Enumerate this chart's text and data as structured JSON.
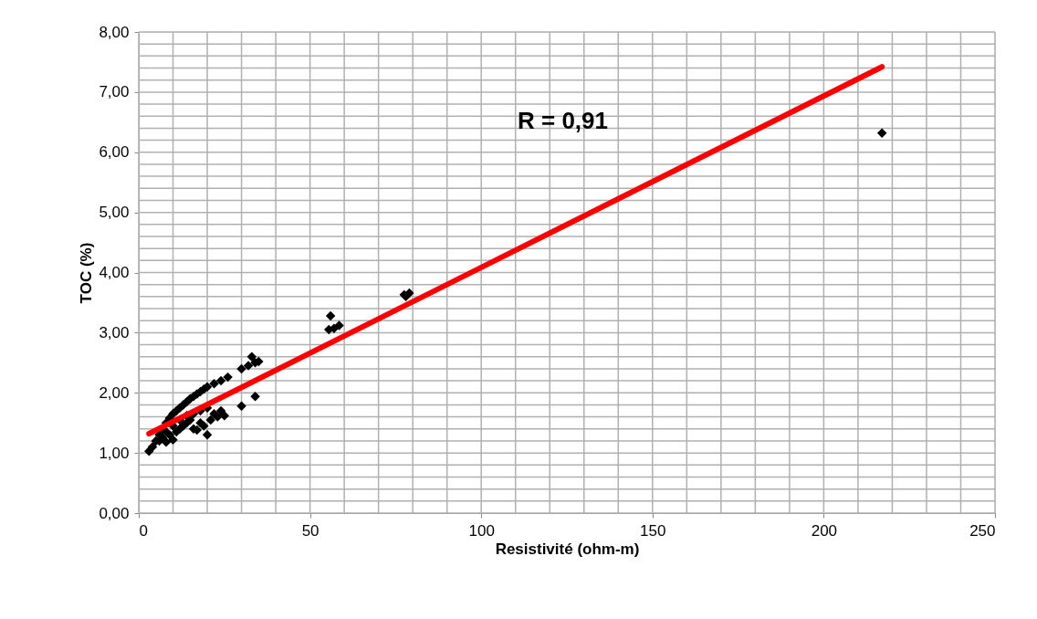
{
  "chart_data": {
    "type": "scatter",
    "xlabel": "Resistivité (ohm-m)",
    "ylabel": "TOC (%)",
    "annotations": [
      "R = 0,91"
    ],
    "xlim": [
      0,
      250
    ],
    "ylim": [
      0,
      8
    ],
    "xticks": [
      0,
      {
        "value": 10,
        "label": null
      },
      {
        "value": 20,
        "label": null
      },
      {
        "value": 30,
        "label": null
      },
      {
        "value": 40,
        "label": null
      },
      50,
      {
        "value": 60,
        "label": null
      },
      {
        "value": 70,
        "label": null
      },
      {
        "value": 80,
        "label": null
      },
      {
        "value": 90,
        "label": null
      },
      100,
      {
        "value": 110,
        "label": null
      },
      {
        "value": 120,
        "label": null
      },
      {
        "value": 130,
        "label": null
      },
      {
        "value": 140,
        "label": null
      },
      150,
      {
        "value": 160,
        "label": null
      },
      {
        "value": 170,
        "label": null
      },
      {
        "value": 180,
        "label": null
      },
      {
        "value": 190,
        "label": null
      },
      200,
      {
        "value": 210,
        "label": null
      },
      {
        "value": 220,
        "label": null
      },
      {
        "value": 230,
        "label": null
      },
      {
        "value": 240,
        "label": null
      },
      250
    ],
    "yticks": [
      {
        "value": 0,
        "label": "0,00"
      },
      {
        "value": 0.2,
        "label": null
      },
      {
        "value": 0.4,
        "label": null
      },
      {
        "value": 0.6,
        "label": null
      },
      {
        "value": 0.8,
        "label": null
      },
      {
        "value": 1,
        "label": "1,00"
      },
      {
        "value": 1.2,
        "label": null
      },
      {
        "value": 1.4,
        "label": null
      },
      {
        "value": 1.6,
        "label": null
      },
      {
        "value": 1.8,
        "label": null
      },
      {
        "value": 2,
        "label": "2,00"
      },
      {
        "value": 2.2,
        "label": null
      },
      {
        "value": 2.4,
        "label": null
      },
      {
        "value": 2.6,
        "label": null
      },
      {
        "value": 2.8,
        "label": null
      },
      {
        "value": 3,
        "label": "3,00"
      },
      {
        "value": 3.2,
        "label": null
      },
      {
        "value": 3.4,
        "label": null
      },
      {
        "value": 3.6,
        "label": null
      },
      {
        "value": 3.8,
        "label": null
      },
      {
        "value": 4,
        "label": "4,00"
      },
      {
        "value": 4.2,
        "label": null
      },
      {
        "value": 4.4,
        "label": null
      },
      {
        "value": 4.6,
        "label": null
      },
      {
        "value": 4.8,
        "label": null
      },
      {
        "value": 5,
        "label": "5,00"
      },
      {
        "value": 5.2,
        "label": null
      },
      {
        "value": 5.4,
        "label": null
      },
      {
        "value": 5.6,
        "label": null
      },
      {
        "value": 5.8,
        "label": null
      },
      {
        "value": 6,
        "label": "6,00"
      },
      {
        "value": 6.2,
        "label": null
      },
      {
        "value": 6.4,
        "label": null
      },
      {
        "value": 6.6,
        "label": null
      },
      {
        "value": 6.8,
        "label": null
      },
      {
        "value": 7,
        "label": "7,00"
      },
      {
        "value": 7.2,
        "label": null
      },
      {
        "value": 7.4,
        "label": null
      },
      {
        "value": 7.6,
        "label": null
      },
      {
        "value": 7.8,
        "label": null
      },
      {
        "value": 8,
        "label": "8,00"
      }
    ],
    "grid": true,
    "marker": "diamond",
    "series": [
      {
        "color": "#000000",
        "x": [
          3,
          4,
          5,
          6,
          7,
          8,
          9,
          10,
          11,
          12,
          13,
          14,
          15,
          16,
          17,
          18,
          19,
          20,
          22,
          24,
          26,
          30,
          32,
          33,
          34,
          35,
          6,
          7,
          8,
          9,
          10,
          11,
          12,
          13,
          14,
          15,
          16,
          17,
          18,
          19,
          20,
          21,
          22,
          23,
          24,
          25,
          30,
          34,
          8,
          10,
          12,
          14,
          16,
          18,
          20,
          55.5,
          56,
          57,
          58.5,
          77.5,
          78,
          79,
          217
        ],
        "values": [
          1.03,
          1.1,
          1.2,
          1.3,
          1.4,
          1.5,
          1.58,
          1.65,
          1.7,
          1.75,
          1.8,
          1.85,
          1.9,
          1.94,
          1.98,
          2.02,
          2.06,
          2.1,
          2.15,
          2.2,
          2.26,
          2.4,
          2.45,
          2.6,
          2.5,
          2.52,
          1.2,
          1.25,
          1.18,
          1.3,
          1.22,
          1.35,
          1.4,
          1.45,
          1.5,
          1.55,
          1.4,
          1.38,
          1.5,
          1.45,
          1.3,
          1.55,
          1.65,
          1.6,
          1.7,
          1.62,
          1.78,
          1.94,
          1.35,
          1.45,
          1.55,
          1.62,
          1.65,
          1.7,
          1.75,
          3.05,
          3.28,
          3.07,
          3.12,
          3.63,
          3.6,
          3.66,
          6.32
        ]
      },
      {
        "type": "line",
        "color": "#ff0000",
        "marker": "none",
        "line_style": "solid",
        "x": [
          3,
          217
        ],
        "values": [
          1.32,
          7.42
        ]
      }
    ]
  }
}
